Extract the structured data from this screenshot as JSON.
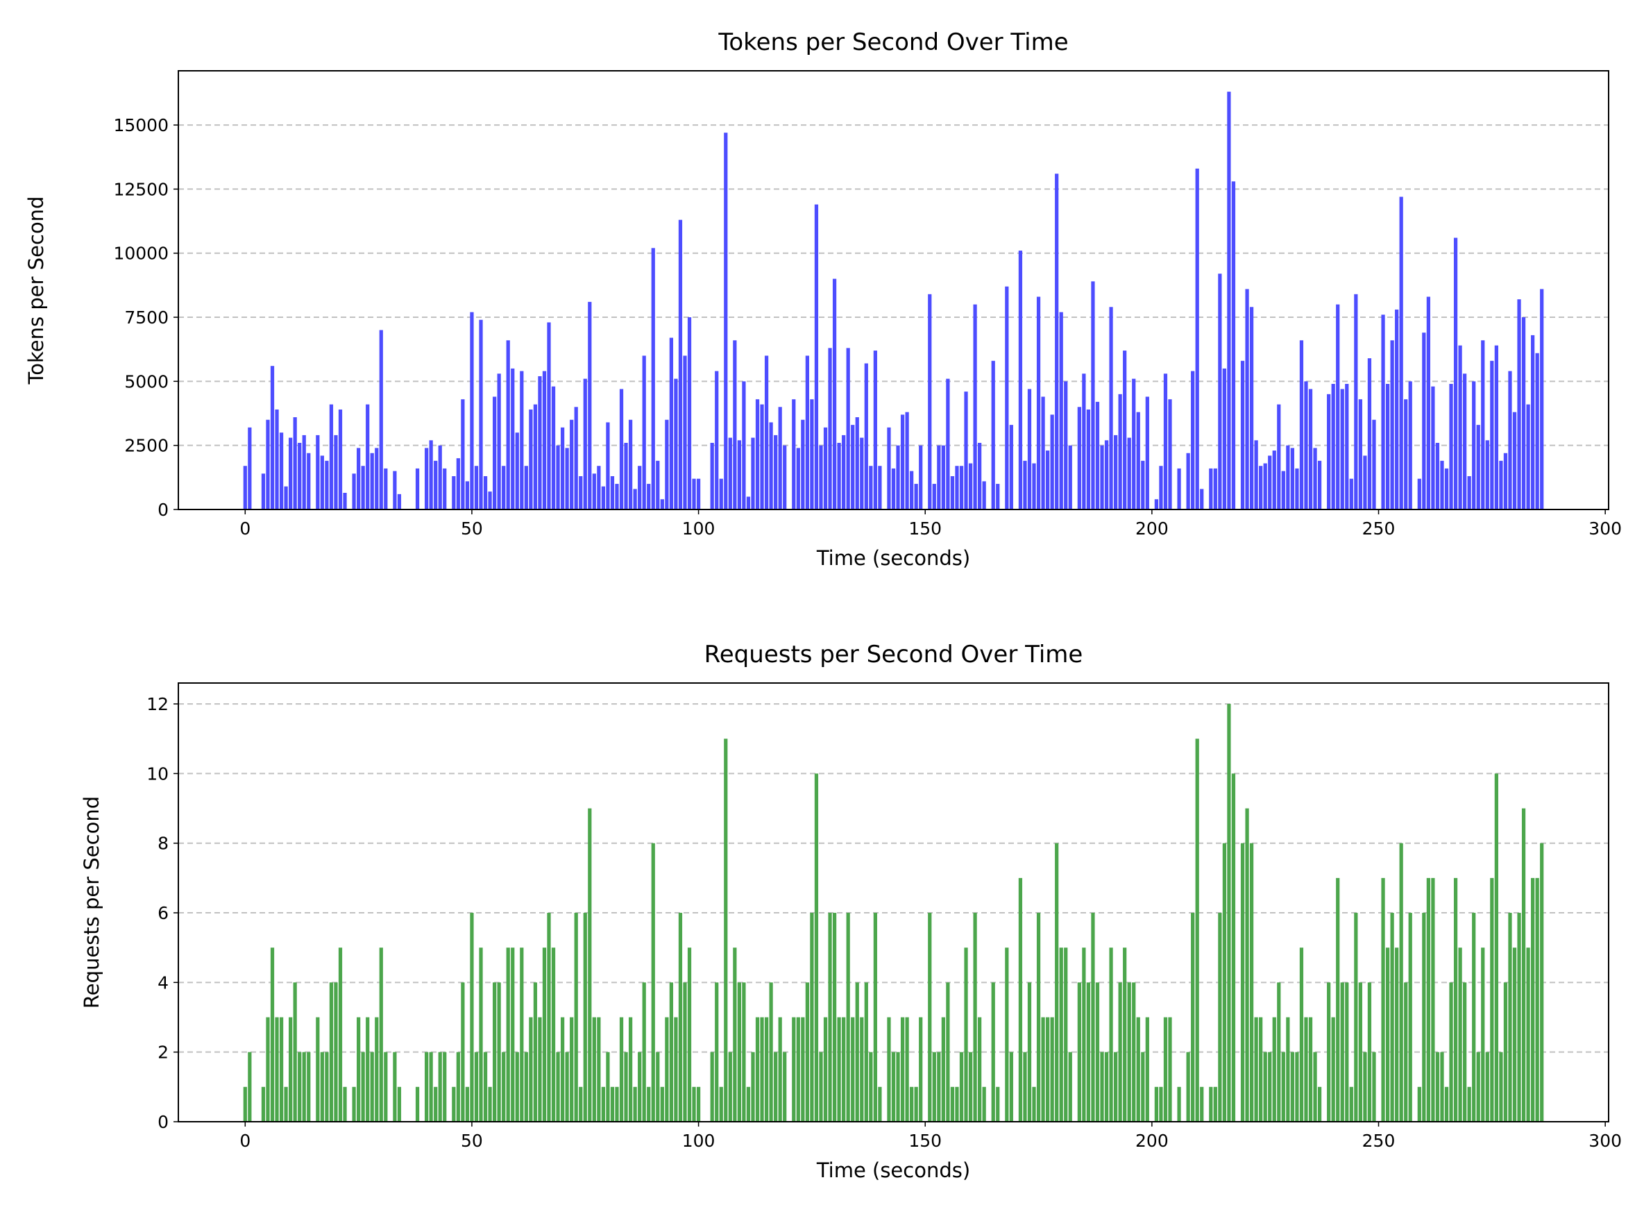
{
  "chart_data": [
    {
      "type": "bar",
      "title": "Tokens per Second Over Time",
      "xlabel": "Time (seconds)",
      "ylabel": "Tokens per Second",
      "x": [
        0,
        1,
        2,
        3,
        4,
        5,
        6,
        7,
        8,
        9,
        10,
        11,
        12,
        13,
        14,
        15,
        16,
        17,
        18,
        19,
        20,
        21,
        22,
        23,
        24,
        25,
        26,
        27,
        28,
        29,
        30,
        31,
        32,
        33,
        34,
        35,
        36,
        37,
        38,
        39,
        40,
        41,
        42,
        43,
        44,
        45,
        46,
        47,
        48,
        49,
        50,
        51,
        52,
        53,
        54,
        55,
        56,
        57,
        58,
        59,
        60,
        61,
        62,
        63,
        64,
        65,
        66,
        67,
        68,
        69,
        70,
        71,
        72,
        73,
        74,
        75,
        76,
        77,
        78,
        79,
        80,
        81,
        82,
        83,
        84,
        85,
        86,
        87,
        88,
        89,
        90,
        91,
        92,
        93,
        94,
        95,
        96,
        97,
        98,
        99,
        100,
        101,
        102,
        103,
        104,
        105,
        106,
        107,
        108,
        109,
        110,
        111,
        112,
        113,
        114,
        115,
        116,
        117,
        118,
        119,
        120,
        121,
        122,
        123,
        124,
        125,
        126,
        127,
        128,
        129,
        130,
        131,
        132,
        133,
        134,
        135,
        136,
        137,
        138,
        139,
        140,
        141,
        142,
        143,
        144,
        145,
        146,
        147,
        148,
        149,
        150,
        151,
        152,
        153,
        154,
        155,
        156,
        157,
        158,
        159,
        160,
        161,
        162,
        163,
        164,
        165,
        166,
        167,
        168,
        169,
        170,
        171,
        172,
        173,
        174,
        175,
        176,
        177,
        178,
        179,
        180,
        181,
        182,
        183,
        184,
        185,
        186,
        187,
        188,
        189,
        190,
        191,
        192,
        193,
        194,
        195,
        196,
        197,
        198,
        199,
        200,
        201,
        202,
        203,
        204,
        205,
        206,
        207,
        208,
        209,
        210,
        211,
        212,
        213,
        214,
        215,
        216,
        217,
        218,
        219,
        220,
        221,
        222,
        223,
        224,
        225,
        226,
        227,
        228,
        229,
        230,
        231,
        232,
        233,
        234,
        235,
        236,
        237,
        238,
        239,
        240,
        241,
        242,
        243,
        244,
        245,
        246,
        247,
        248,
        249,
        250,
        251,
        252,
        253,
        254,
        255,
        256,
        257,
        258,
        259,
        260,
        261,
        262,
        263,
        264,
        265,
        266,
        267,
        268,
        269,
        270,
        271,
        272,
        273,
        274,
        275,
        276,
        277,
        278,
        279,
        280,
        281,
        282,
        283,
        284,
        285,
        286
      ],
      "values": [
        1700,
        3200,
        0,
        0,
        1400,
        3500,
        5600,
        3900,
        3000,
        900,
        2800,
        3600,
        2600,
        2900,
        2200,
        0,
        2900,
        2100,
        1900,
        4100,
        2900,
        3900,
        650,
        0,
        1400,
        2400,
        1700,
        4100,
        2200,
        2400,
        7000,
        1600,
        0,
        1500,
        600,
        0,
        0,
        0,
        1600,
        0,
        2400,
        2700,
        1900,
        2500,
        1600,
        0,
        1300,
        2000,
        4300,
        1100,
        7700,
        1700,
        7400,
        1300,
        700,
        4400,
        5300,
        1700,
        6600,
        5500,
        3000,
        5400,
        1700,
        3900,
        4100,
        5200,
        5400,
        7300,
        4800,
        2500,
        3200,
        2400,
        3500,
        4000,
        1300,
        5100,
        8100,
        1400,
        1700,
        900,
        3400,
        1300,
        1000,
        4700,
        2600,
        3500,
        800,
        1700,
        6000,
        1000,
        10200,
        1900,
        400,
        3500,
        6700,
        5100,
        11300,
        6000,
        7500,
        1200,
        1200,
        0,
        0,
        2600,
        5400,
        1200,
        14700,
        2800,
        6600,
        2700,
        5000,
        500,
        2800,
        4300,
        4100,
        6000,
        3400,
        2900,
        4000,
        2500,
        0,
        4300,
        2400,
        3500,
        6000,
        4300,
        11900,
        2500,
        3200,
        6300,
        9000,
        2600,
        2900,
        6300,
        3300,
        3600,
        2800,
        5700,
        1700,
        6200,
        1700,
        0,
        3200,
        1600,
        2500,
        3700,
        3800,
        1500,
        1000,
        2500,
        0,
        8400,
        1000,
        2500,
        2500,
        5100,
        1300,
        1700,
        1700,
        4600,
        1800,
        8000,
        2600,
        1100,
        0,
        5800,
        1000,
        0,
        8700,
        3300,
        0,
        10100,
        1900,
        4700,
        1800,
        8300,
        4400,
        2300,
        3700,
        13100,
        7700,
        5000,
        2500,
        0,
        4000,
        5300,
        3900,
        8900,
        4200,
        2500,
        2700,
        7900,
        2900,
        4500,
        6200,
        2800,
        5100,
        3800,
        1900,
        4400,
        0,
        400,
        1700,
        5300,
        4300,
        0,
        1600,
        0,
        2200,
        5400,
        13300,
        800,
        0,
        1600,
        1600,
        9200,
        5500,
        16300,
        12800,
        0,
        5800,
        8600,
        7900,
        2700,
        1700,
        1800,
        2100,
        2300,
        4100,
        1500,
        2500,
        2400,
        1600,
        6600,
        5000,
        4700,
        2400,
        1900,
        0,
        4500,
        4900,
        8000,
        4700,
        4900,
        1200,
        8400,
        4300,
        2100,
        5900,
        3500,
        0,
        7600,
        4900,
        6600,
        7800,
        12200,
        4300,
        5000,
        0,
        1200,
        6900,
        8300,
        4800,
        2600,
        1900,
        1600,
        4900,
        10600,
        6400,
        5300,
        1300,
        5000,
        3300,
        6600,
        2700,
        5800,
        6400,
        1900,
        2200,
        5400,
        3800,
        8200,
        7500,
        4100,
        6800,
        6100,
        8600
      ],
      "color": "#4d4dff",
      "xlim": [
        -14.74,
        300.74
      ],
      "ylim": [
        0,
        17115
      ],
      "xticks": [
        0,
        50,
        100,
        150,
        200,
        250,
        300
      ],
      "yticks": [
        0,
        2500,
        5000,
        7500,
        10000,
        12500,
        15000
      ],
      "grid": true
    },
    {
      "type": "bar",
      "title": "Requests per Second Over Time",
      "xlabel": "Time (seconds)",
      "ylabel": "Requests per Second",
      "x": [
        0,
        1,
        2,
        3,
        4,
        5,
        6,
        7,
        8,
        9,
        10,
        11,
        12,
        13,
        14,
        15,
        16,
        17,
        18,
        19,
        20,
        21,
        22,
        23,
        24,
        25,
        26,
        27,
        28,
        29,
        30,
        31,
        32,
        33,
        34,
        35,
        36,
        37,
        38,
        39,
        40,
        41,
        42,
        43,
        44,
        45,
        46,
        47,
        48,
        49,
        50,
        51,
        52,
        53,
        54,
        55,
        56,
        57,
        58,
        59,
        60,
        61,
        62,
        63,
        64,
        65,
        66,
        67,
        68,
        69,
        70,
        71,
        72,
        73,
        74,
        75,
        76,
        77,
        78,
        79,
        80,
        81,
        82,
        83,
        84,
        85,
        86,
        87,
        88,
        89,
        90,
        91,
        92,
        93,
        94,
        95,
        96,
        97,
        98,
        99,
        100,
        101,
        102,
        103,
        104,
        105,
        106,
        107,
        108,
        109,
        110,
        111,
        112,
        113,
        114,
        115,
        116,
        117,
        118,
        119,
        120,
        121,
        122,
        123,
        124,
        125,
        126,
        127,
        128,
        129,
        130,
        131,
        132,
        133,
        134,
        135,
        136,
        137,
        138,
        139,
        140,
        141,
        142,
        143,
        144,
        145,
        146,
        147,
        148,
        149,
        150,
        151,
        152,
        153,
        154,
        155,
        156,
        157,
        158,
        159,
        160,
        161,
        162,
        163,
        164,
        165,
        166,
        167,
        168,
        169,
        170,
        171,
        172,
        173,
        174,
        175,
        176,
        177,
        178,
        179,
        180,
        181,
        182,
        183,
        184,
        185,
        186,
        187,
        188,
        189,
        190,
        191,
        192,
        193,
        194,
        195,
        196,
        197,
        198,
        199,
        200,
        201,
        202,
        203,
        204,
        205,
        206,
        207,
        208,
        209,
        210,
        211,
        212,
        213,
        214,
        215,
        216,
        217,
        218,
        219,
        220,
        221,
        222,
        223,
        224,
        225,
        226,
        227,
        228,
        229,
        230,
        231,
        232,
        233,
        234,
        235,
        236,
        237,
        238,
        239,
        240,
        241,
        242,
        243,
        244,
        245,
        246,
        247,
        248,
        249,
        250,
        251,
        252,
        253,
        254,
        255,
        256,
        257,
        258,
        259,
        260,
        261,
        262,
        263,
        264,
        265,
        266,
        267,
        268,
        269,
        270,
        271,
        272,
        273,
        274,
        275,
        276,
        277,
        278,
        279,
        280,
        281,
        282,
        283,
        284,
        285,
        286
      ],
      "values": [
        1,
        2,
        0,
        0,
        1,
        3,
        5,
        3,
        3,
        1,
        3,
        4,
        2,
        2,
        2,
        0,
        3,
        2,
        2,
        4,
        4,
        5,
        1,
        0,
        1,
        3,
        2,
        3,
        2,
        3,
        5,
        2,
        0,
        2,
        1,
        0,
        0,
        0,
        1,
        0,
        2,
        2,
        1,
        2,
        2,
        0,
        1,
        2,
        4,
        1,
        6,
        2,
        5,
        2,
        1,
        4,
        4,
        2,
        5,
        5,
        2,
        5,
        2,
        3,
        4,
        3,
        5,
        6,
        5,
        2,
        3,
        2,
        3,
        6,
        1,
        6,
        9,
        3,
        3,
        1,
        2,
        1,
        1,
        3,
        2,
        3,
        1,
        2,
        4,
        1,
        8,
        2,
        1,
        3,
        4,
        3,
        6,
        4,
        5,
        1,
        1,
        0,
        0,
        2,
        4,
        1,
        11,
        2,
        5,
        4,
        4,
        1,
        2,
        3,
        3,
        3,
        4,
        2,
        3,
        2,
        0,
        3,
        3,
        3,
        4,
        6,
        10,
        2,
        3,
        6,
        6,
        3,
        3,
        6,
        3,
        4,
        3,
        4,
        2,
        6,
        1,
        0,
        3,
        2,
        2,
        3,
        3,
        1,
        1,
        3,
        0,
        6,
        2,
        2,
        3,
        4,
        1,
        1,
        2,
        5,
        2,
        6,
        3,
        1,
        0,
        4,
        1,
        0,
        5,
        2,
        0,
        7,
        2,
        4,
        1,
        6,
        3,
        3,
        3,
        8,
        5,
        5,
        2,
        0,
        4,
        5,
        4,
        6,
        4,
        2,
        2,
        5,
        2,
        4,
        5,
        4,
        4,
        3,
        2,
        3,
        0,
        1,
        1,
        3,
        3,
        0,
        1,
        0,
        2,
        6,
        11,
        1,
        0,
        1,
        1,
        6,
        8,
        12,
        10,
        0,
        8,
        9,
        8,
        3,
        3,
        2,
        2,
        3,
        4,
        2,
        3,
        2,
        2,
        5,
        3,
        3,
        2,
        1,
        0,
        4,
        3,
        7,
        4,
        4,
        1,
        6,
        4,
        2,
        4,
        2,
        0,
        7,
        5,
        6,
        5,
        8,
        4,
        6,
        0,
        1,
        6,
        7,
        7,
        2,
        2,
        1,
        4,
        7,
        5,
        4,
        1,
        6,
        2,
        5,
        2,
        7,
        10,
        2,
        4,
        6,
        5,
        6,
        9,
        5,
        7,
        7,
        8
      ],
      "color": "#4ca64c",
      "xlim": [
        -14.74,
        300.74
      ],
      "ylim": [
        0,
        12.6
      ],
      "xticks": [
        0,
        50,
        100,
        150,
        200,
        250,
        300
      ],
      "yticks": [
        0,
        2,
        4,
        6,
        8,
        10,
        12
      ],
      "grid": true
    }
  ]
}
